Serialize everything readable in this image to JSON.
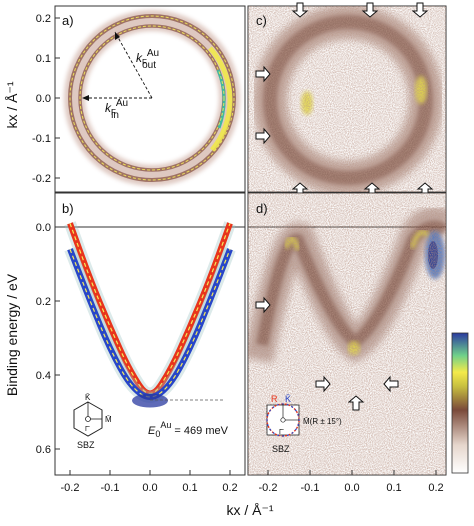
{
  "figure": {
    "ylabel_top": "kx / Å⁻¹",
    "ylabel_bottom": "Binding energy / eV",
    "xlabel": "kx / Å⁻¹",
    "colors": {
      "outer_band": "#e8341c",
      "inner_band": "#2846c8",
      "fit_dashed": "#f4ea5a",
      "intensity_low": "#f4ece6",
      "intensity_mid": "#7a4a3a",
      "intensity_high": "#e6ea4a"
    }
  },
  "panels": {
    "a": {
      "label": "a)",
      "annot_out": "kF^Au_out",
      "annot_out_main": "k",
      "annot_out_sub": "F",
      "annot_out_sup": "Au",
      "annot_out_sub2": "out",
      "annot_in_main": "k",
      "annot_in_sub": "F",
      "annot_in_sup": "Au",
      "annot_in_sub2": "in"
    },
    "b": {
      "label": "b)",
      "energy_main": "E",
      "energy_sub": "0",
      "energy_sup": "Au",
      "energy_value": " = 469 meV",
      "sbz_label": "SBZ",
      "sbz_points": {
        "K": "K̄",
        "M": "M̄",
        "G": "Γ̄"
      }
    },
    "c": {
      "label": "c)"
    },
    "d": {
      "label": "d)",
      "sbz_label": "SBZ",
      "sbz_points": {
        "R": "R",
        "K": "K̄",
        "G": "Γ̄"
      },
      "sbz_annot": "M̄(R ± 15°)"
    }
  },
  "chart_data": [
    {
      "type": "heatmap",
      "panel": "a",
      "ylim": [
        -0.25,
        0.25
      ],
      "yticks": [
        "0.2",
        "0.1",
        "0.0",
        "-0.1",
        "-0.2"
      ],
      "series": [
        {
          "name": "kF_in",
          "values": [
            0.17
          ]
        },
        {
          "name": "kF_out",
          "values": [
            0.19
          ]
        }
      ]
    },
    {
      "type": "line",
      "panel": "b",
      "xlim": [
        -0.25,
        0.25
      ],
      "ylim": [
        0.62,
        0.0
      ],
      "xticks": [
        "-0.2",
        "-0.1",
        "0.0",
        "0.1",
        "0.2"
      ],
      "yticks": [
        "0.0",
        "0.2",
        "0.4",
        "0.6"
      ],
      "x": [
        -0.2,
        -0.15,
        -0.1,
        -0.05,
        0.0,
        0.05,
        0.1,
        0.15,
        0.2
      ],
      "series": [
        {
          "name": "outer",
          "values": [
            -0.01,
            0.14,
            0.27,
            0.39,
            0.47,
            0.39,
            0.27,
            0.14,
            -0.01
          ]
        },
        {
          "name": "inner",
          "values": [
            0.06,
            0.2,
            0.33,
            0.43,
            0.469,
            0.43,
            0.33,
            0.2,
            0.06
          ]
        }
      ],
      "annotations": [
        {
          "text": "E0Au = 469 meV",
          "y": 0.469
        }
      ]
    },
    {
      "type": "heatmap",
      "panel": "c"
    },
    {
      "type": "heatmap",
      "panel": "d",
      "xlim": [
        -0.25,
        0.25
      ],
      "xticks": [
        "-0.2",
        "-0.1",
        "0.0",
        "0.1",
        "0.2"
      ]
    }
  ]
}
